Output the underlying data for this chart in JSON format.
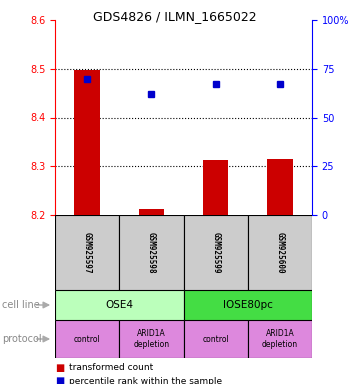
{
  "title": "GDS4826 / ILMN_1665022",
  "samples": [
    "GSM925597",
    "GSM925598",
    "GSM925599",
    "GSM925600"
  ],
  "bar_values": [
    8.497,
    8.212,
    8.313,
    8.315
  ],
  "bar_base": 8.2,
  "blue_values": [
    70,
    62,
    67,
    67
  ],
  "ylim_left": [
    8.2,
    8.6
  ],
  "ylim_right": [
    0,
    100
  ],
  "yticks_left": [
    8.2,
    8.3,
    8.4,
    8.5,
    8.6
  ],
  "yticks_right": [
    0,
    25,
    50,
    75,
    100
  ],
  "ytick_right_labels": [
    "0",
    "25",
    "50",
    "75",
    "100%"
  ],
  "bar_color": "#cc0000",
  "blue_color": "#0000cc",
  "cell_line_labels": [
    "OSE4",
    "IOSE80pc"
  ],
  "cell_line_colors": [
    "#bbffbb",
    "#44dd44"
  ],
  "cell_line_spans": [
    [
      0,
      2
    ],
    [
      2,
      4
    ]
  ],
  "protocol_labels": [
    "control",
    "ARID1A\ndepletion",
    "control",
    "ARID1A\ndepletion"
  ],
  "protocol_color": "#dd88dd",
  "sample_box_color": "#cccccc",
  "legend_red_label": "transformed count",
  "legend_blue_label": "percentile rank within the sample",
  "row_label_cell_line": "cell line",
  "row_label_protocol": "protocol",
  "grid_lines": [
    8.3,
    8.4,
    8.5
  ]
}
